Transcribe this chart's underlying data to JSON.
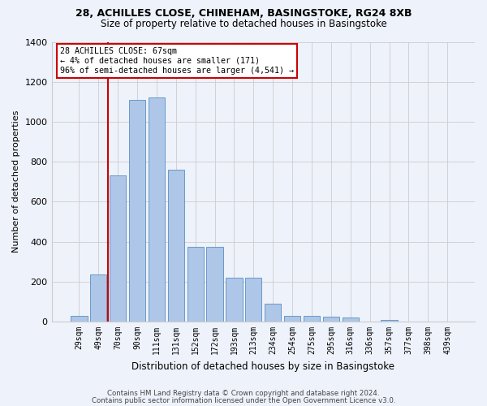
{
  "title_line1": "28, ACHILLES CLOSE, CHINEHAM, BASINGSTOKE, RG24 8XB",
  "title_line2": "Size of property relative to detached houses in Basingstoke",
  "xlabel": "Distribution of detached houses by size in Basingstoke",
  "ylabel": "Number of detached properties",
  "footer_line1": "Contains HM Land Registry data © Crown copyright and database right 2024.",
  "footer_line2": "Contains public sector information licensed under the Open Government Licence v3.0.",
  "annotation_title": "28 ACHILLES CLOSE: 67sqm",
  "annotation_line1": "← 4% of detached houses are smaller (171)",
  "annotation_line2": "96% of semi-detached houses are larger (4,541) →",
  "bar_categories": [
    "29sqm",
    "49sqm",
    "70sqm",
    "90sqm",
    "111sqm",
    "131sqm",
    "152sqm",
    "172sqm",
    "193sqm",
    "213sqm",
    "234sqm",
    "254sqm",
    "275sqm",
    "295sqm",
    "316sqm",
    "336sqm",
    "357sqm",
    "377sqm",
    "398sqm",
    "439sqm"
  ],
  "bar_values": [
    30,
    235,
    730,
    1110,
    1120,
    760,
    375,
    375,
    220,
    220,
    90,
    30,
    30,
    25,
    20,
    0,
    10,
    0,
    0,
    0
  ],
  "bar_color": "#aec6e8",
  "bar_edge_color": "#5a8fc0",
  "vline_color": "#cc0000",
  "annotation_box_color": "#cc0000",
  "background_color": "#eef2fb",
  "ylim": [
    0,
    1400
  ],
  "yticks": [
    0,
    200,
    400,
    600,
    800,
    1000,
    1200,
    1400
  ]
}
